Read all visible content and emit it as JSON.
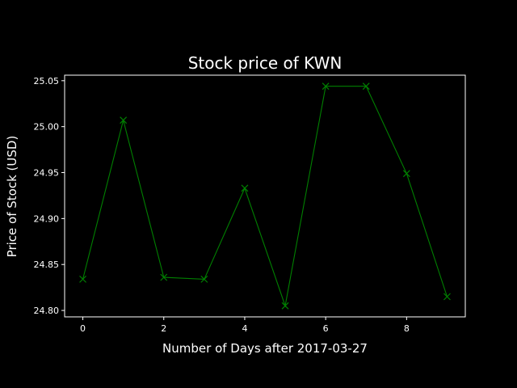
{
  "chart_data": {
    "type": "line",
    "title": "Stock price of KWN",
    "xlabel": "Number of Days after 2017-03-27",
    "ylabel": "Price of Stock (USD)",
    "xlim": [
      -0.45,
      9.45
    ],
    "ylim": [
      24.793,
      25.056
    ],
    "x_ticks": [
      0,
      2,
      4,
      6,
      8
    ],
    "y_ticks": [
      "24.80",
      "24.85",
      "24.90",
      "24.95",
      "25.00",
      "25.05"
    ],
    "grid": false,
    "marker": "x",
    "series": [
      {
        "x": [
          0,
          1,
          2,
          3,
          4,
          5,
          6,
          7,
          8,
          9
        ],
        "values": [
          24.834,
          25.007,
          24.836,
          24.834,
          24.933,
          24.805,
          25.044,
          25.044,
          24.949,
          24.815
        ]
      }
    ],
    "colors": {
      "background": "#000000",
      "line": "#008000",
      "text": "#ffffff",
      "axes": "#ffffff"
    }
  }
}
